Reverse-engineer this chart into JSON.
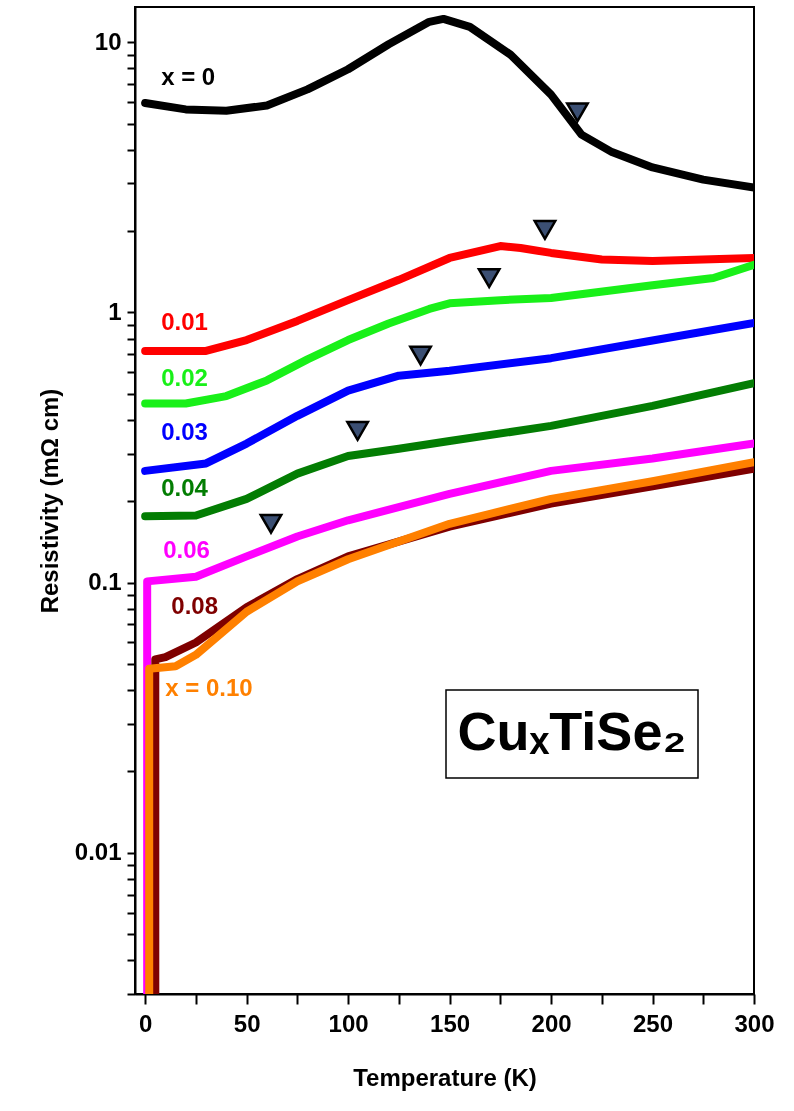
{
  "chart_data": {
    "type": "line",
    "xlabel": "Temperature (K)",
    "ylabel": "Resistivity (mΩ cm)",
    "log": "y",
    "grid": false,
    "xlim": [
      -5,
      300
    ],
    "xticks": [
      0,
      {
        "value": 25,
        "label": null
      },
      50,
      {
        "value": 75,
        "label": null
      },
      100,
      {
        "value": 125,
        "label": null
      },
      150,
      {
        "value": 175,
        "label": null
      },
      200,
      {
        "value": 225,
        "label": null
      },
      250,
      {
        "value": 275,
        "label": null
      },
      300
    ],
    "ylim": [
      0.003,
      13.5
    ],
    "yticks": [
      {
        "value": 0.003,
        "label": null
      },
      {
        "value": 0.004,
        "label": null
      },
      {
        "value": 0.005,
        "label": null
      },
      {
        "value": 0.006,
        "label": null
      },
      {
        "value": 0.007,
        "label": null
      },
      {
        "value": 0.008,
        "label": null
      },
      {
        "value": 0.009,
        "label": null
      },
      0.01,
      {
        "value": 0.02,
        "label": null
      },
      {
        "value": 0.03,
        "label": null
      },
      {
        "value": 0.04,
        "label": null
      },
      {
        "value": 0.05,
        "label": null
      },
      {
        "value": 0.06,
        "label": null
      },
      {
        "value": 0.07,
        "label": null
      },
      {
        "value": 0.08,
        "label": null
      },
      {
        "value": 0.09,
        "label": null
      },
      0.1,
      {
        "value": 0.2,
        "label": null
      },
      {
        "value": 0.3,
        "label": null
      },
      {
        "value": 0.4,
        "label": null
      },
      {
        "value": 0.5,
        "label": null
      },
      {
        "value": 0.6,
        "label": null
      },
      {
        "value": 0.7,
        "label": null
      },
      {
        "value": 0.8,
        "label": null
      },
      {
        "value": 0.9,
        "label": null
      },
      1,
      {
        "value": 2,
        "label": null
      },
      {
        "value": 3,
        "label": null
      },
      {
        "value": 4,
        "label": null
      },
      {
        "value": 5,
        "label": null
      },
      {
        "value": 6,
        "label": null
      },
      {
        "value": 7,
        "label": null
      },
      {
        "value": 8,
        "label": null
      },
      {
        "value": 9,
        "label": null
      },
      10
    ],
    "line_style": "solid",
    "annotations": [
      "CuₓTiSe₂"
    ],
    "series": [
      {
        "name": "x = 0",
        "marker": "none",
        "color": "#000000",
        "x": [
          0,
          20,
          40,
          60,
          80,
          85,
          100,
          120,
          140,
          147,
          160,
          180,
          200,
          215,
          230,
          250,
          275,
          300
        ],
        "values": [
          5.96,
          5.64,
          5.58,
          5.83,
          6.69,
          6.98,
          7.94,
          9.83,
          11.9,
          12.2,
          11.4,
          9.0,
          6.4,
          4.55,
          3.92,
          3.44,
          3.1,
          2.9
        ]
      },
      {
        "name": "0.01",
        "marker": "none",
        "color": "#ff0000",
        "x": [
          0,
          30,
          50,
          75,
          100,
          125,
          150,
          175,
          185,
          200,
          225,
          250,
          300
        ],
        "values": [
          0.72,
          0.72,
          0.79,
          0.93,
          1.11,
          1.32,
          1.59,
          1.76,
          1.73,
          1.66,
          1.57,
          1.55,
          1.59
        ]
      },
      {
        "name": "0.02",
        "marker": "none",
        "color": "#19f019",
        "x": [
          0,
          20,
          40,
          60,
          80,
          100,
          120,
          140,
          150,
          175,
          200,
          250,
          280,
          300
        ],
        "values": [
          0.46,
          0.46,
          0.49,
          0.56,
          0.67,
          0.79,
          0.91,
          1.03,
          1.08,
          1.11,
          1.13,
          1.26,
          1.34,
          1.5
        ]
      },
      {
        "name": "0.03",
        "marker": "none",
        "color": "#0000ff",
        "x": [
          0,
          30,
          50,
          75,
          100,
          125,
          150,
          200,
          250,
          300
        ],
        "values": [
          0.259,
          0.276,
          0.327,
          0.414,
          0.513,
          0.583,
          0.608,
          0.677,
          0.787,
          0.914
        ]
      },
      {
        "name": "0.04",
        "marker": "none",
        "color": "#037d03",
        "x": [
          0,
          25,
          50,
          75,
          100,
          125,
          150,
          200,
          250,
          300
        ],
        "values": [
          0.176,
          0.177,
          0.204,
          0.253,
          0.294,
          0.313,
          0.334,
          0.38,
          0.451,
          0.547
        ]
      },
      {
        "name": "0.06",
        "marker": "none",
        "color": "#ff00ff",
        "x": [
          1,
          1,
          25,
          50,
          75,
          100,
          150,
          200,
          250,
          300
        ],
        "values": [
          0.003,
          0.101,
          0.105,
          0.125,
          0.148,
          0.17,
          0.213,
          0.259,
          0.288,
          0.327
        ]
      },
      {
        "name": "0.08",
        "marker": "none",
        "color": "#7f0000",
        "x": [
          5,
          5,
          10,
          25,
          50,
          75,
          100,
          150,
          200,
          250,
          300
        ],
        "values": [
          0.003,
          0.052,
          0.053,
          0.06,
          0.081,
          0.103,
          0.125,
          0.161,
          0.196,
          0.227,
          0.264
        ]
      },
      {
        "name": "x = 0.10",
        "marker": "none",
        "color": "#ff8000",
        "x": [
          2,
          2,
          15,
          25,
          50,
          75,
          100,
          150,
          200,
          250,
          300
        ],
        "values": [
          0.003,
          0.048,
          0.049,
          0.054,
          0.078,
          0.101,
          0.122,
          0.165,
          0.204,
          0.237,
          0.279
        ]
      },
      {
        "type": "scatter",
        "marker": "triangle",
        "color": "#3b4f73",
        "x": [
          213,
          197,
          169.5,
          135.7,
          104.7,
          62
        ],
        "values": [
          5.5,
          2.02,
          1.34,
          0.692,
          0.364,
          0.165
        ]
      }
    ]
  }
}
